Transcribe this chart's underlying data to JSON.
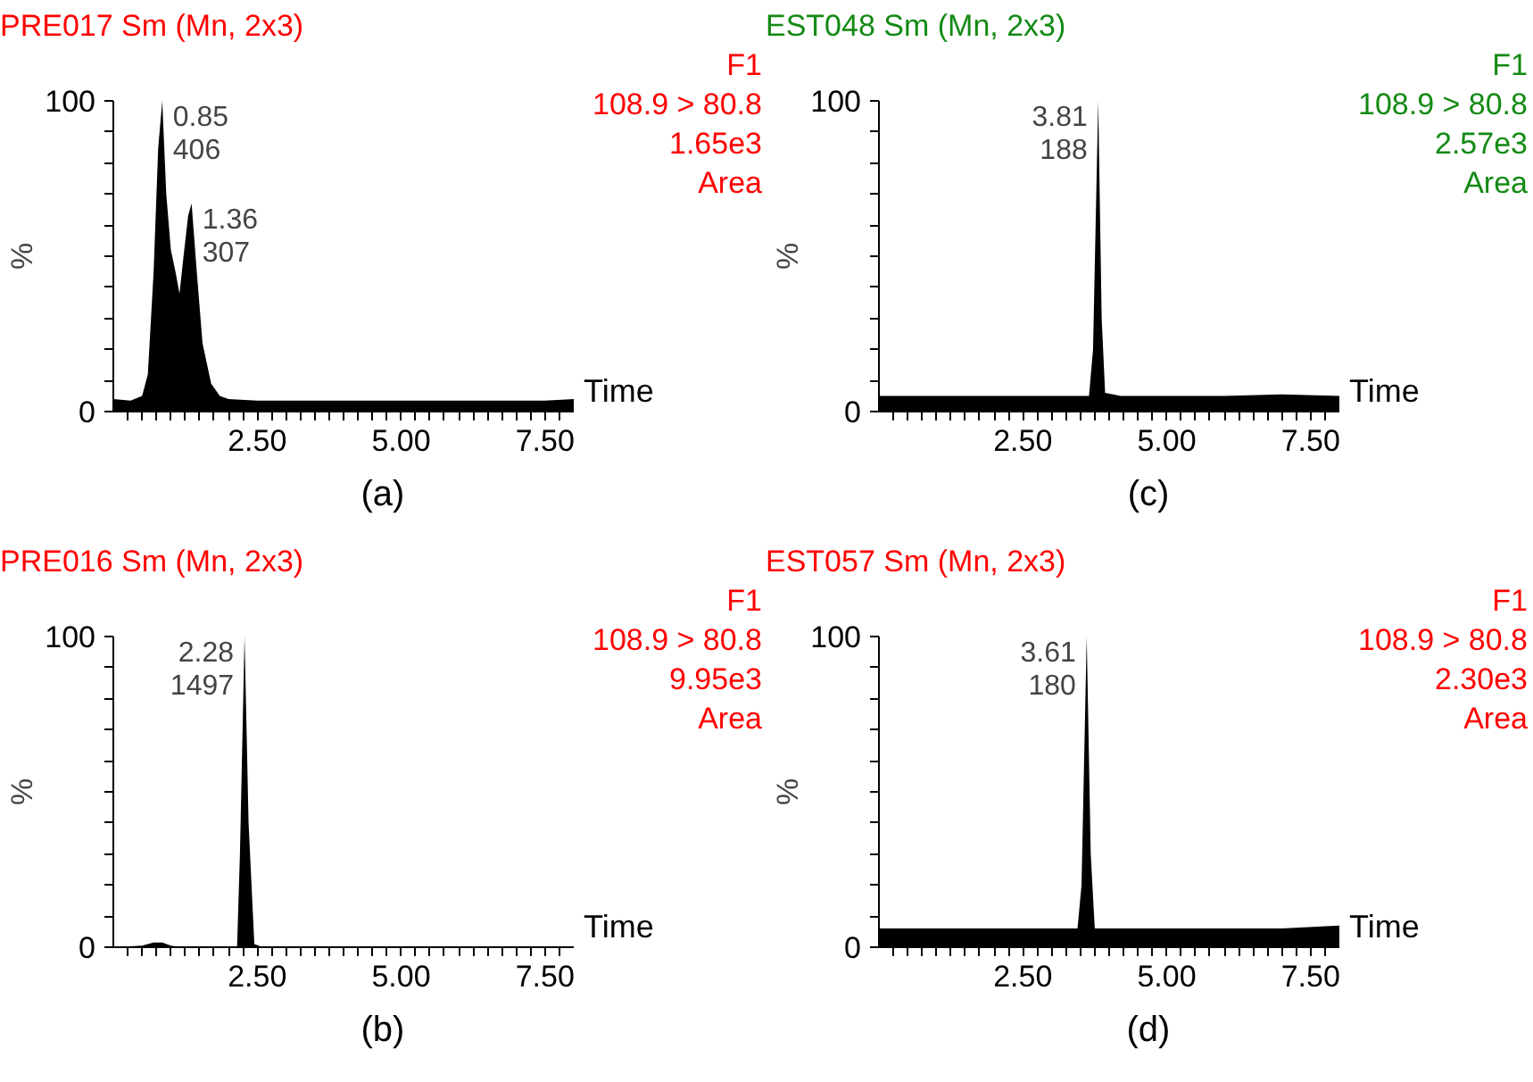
{
  "chart_data": [
    {
      "type": "area",
      "title": "PRE017 Sm (Mn, 2x3)",
      "xlabel": "Time",
      "ylabel": "%",
      "xlim": [
        0,
        8
      ],
      "ylim": [
        0,
        100
      ],
      "xticks": [
        {
          "value": 0.25,
          "label": null
        },
        {
          "value": 0.5,
          "label": null
        },
        {
          "value": 0.75,
          "label": null
        },
        {
          "value": 1,
          "label": null
        },
        {
          "value": 1.25,
          "label": null
        },
        {
          "value": 1.5,
          "label": null
        },
        {
          "value": 1.75,
          "label": null
        },
        {
          "value": 2,
          "label": null
        },
        {
          "value": 2.25,
          "label": null
        },
        {
          "value": 2.5,
          "label": "2.50"
        },
        {
          "value": 2.75,
          "label": null
        },
        {
          "value": 3,
          "label": null
        },
        {
          "value": 3.25,
          "label": null
        },
        {
          "value": 3.5,
          "label": null
        },
        {
          "value": 3.75,
          "label": null
        },
        {
          "value": 4,
          "label": null
        },
        {
          "value": 4.25,
          "label": null
        },
        {
          "value": 4.5,
          "label": null
        },
        {
          "value": 4.75,
          "label": null
        },
        {
          "value": 5,
          "label": "5.00"
        },
        {
          "value": 5.25,
          "label": null
        },
        {
          "value": 5.5,
          "label": null
        },
        {
          "value": 5.75,
          "label": null
        },
        {
          "value": 6,
          "label": null
        },
        {
          "value": 6.25,
          "label": null
        },
        {
          "value": 6.5,
          "label": null
        },
        {
          "value": 6.75,
          "label": null
        },
        {
          "value": 7,
          "label": null
        },
        {
          "value": 7.25,
          "label": null
        },
        {
          "value": 7.5,
          "label": "7.50"
        },
        {
          "value": 7.75,
          "label": null
        }
      ],
      "yticks": [
        0,
        {
          "value": 10,
          "label": null
        },
        {
          "value": 20,
          "label": null
        },
        {
          "value": 30,
          "label": null
        },
        {
          "value": 40,
          "label": null
        },
        {
          "value": 50,
          "label": null
        },
        {
          "value": 60,
          "label": null
        },
        {
          "value": 70,
          "label": null
        },
        {
          "value": 80,
          "label": null
        },
        {
          "value": 90,
          "label": null
        },
        100
      ],
      "x": [
        0,
        0.3,
        0.5,
        0.6,
        0.7,
        0.78,
        0.85,
        0.92,
        1.0,
        1.08,
        1.15,
        1.22,
        1.3,
        1.36,
        1.45,
        1.55,
        1.7,
        1.85,
        2.0,
        2.5,
        3,
        3.5,
        4,
        4.5,
        5,
        5.5,
        6,
        6.5,
        7,
        7.5,
        8
      ],
      "series": [
        {
          "color": "#000000",
          "values": [
            4,
            3.5,
            5,
            12,
            45,
            85,
            100,
            70,
            52,
            45,
            38,
            50,
            63,
            67,
            45,
            22,
            9,
            5,
            4,
            3.5,
            3.5,
            3.5,
            3.5,
            3.5,
            3.5,
            3.5,
            3.5,
            3.5,
            3.5,
            3.5,
            4
          ]
        }
      ],
      "annotations": [
        {
          "text": "0.85\n406",
          "x": 0.85,
          "y": 100
        },
        {
          "text": "1.36\n307",
          "x": 1.36,
          "y": 67
        },
        "F1\n108.9 > 80.8\n1.65e3\nArea",
        "(a)"
      ]
    },
    {
      "type": "area",
      "title": "EST048 Sm (Mn, 2x3)",
      "xlabel": "Time",
      "ylabel": "%",
      "xlim": [
        0,
        8
      ],
      "ylim": [
        0,
        100
      ],
      "xticks": [
        {
          "value": 0.25,
          "label": null
        },
        {
          "value": 0.5,
          "label": null
        },
        {
          "value": 0.75,
          "label": null
        },
        {
          "value": 1,
          "label": null
        },
        {
          "value": 1.25,
          "label": null
        },
        {
          "value": 1.5,
          "label": null
        },
        {
          "value": 1.75,
          "label": null
        },
        {
          "value": 2,
          "label": null
        },
        {
          "value": 2.25,
          "label": null
        },
        {
          "value": 2.5,
          "label": "2.50"
        },
        {
          "value": 2.75,
          "label": null
        },
        {
          "value": 3,
          "label": null
        },
        {
          "value": 3.25,
          "label": null
        },
        {
          "value": 3.5,
          "label": null
        },
        {
          "value": 3.75,
          "label": null
        },
        {
          "value": 4,
          "label": null
        },
        {
          "value": 4.25,
          "label": null
        },
        {
          "value": 4.5,
          "label": null
        },
        {
          "value": 4.75,
          "label": null
        },
        {
          "value": 5,
          "label": "5.00"
        },
        {
          "value": 5.25,
          "label": null
        },
        {
          "value": 5.5,
          "label": null
        },
        {
          "value": 5.75,
          "label": null
        },
        {
          "value": 6,
          "label": null
        },
        {
          "value": 6.25,
          "label": null
        },
        {
          "value": 6.5,
          "label": null
        },
        {
          "value": 6.75,
          "label": null
        },
        {
          "value": 7,
          "label": null
        },
        {
          "value": 7.25,
          "label": null
        },
        {
          "value": 7.5,
          "label": "7.50"
        },
        {
          "value": 7.75,
          "label": null
        }
      ],
      "yticks": [
        0,
        {
          "value": 10,
          "label": null
        },
        {
          "value": 20,
          "label": null
        },
        {
          "value": 30,
          "label": null
        },
        {
          "value": 40,
          "label": null
        },
        {
          "value": 50,
          "label": null
        },
        {
          "value": 60,
          "label": null
        },
        {
          "value": 70,
          "label": null
        },
        {
          "value": 80,
          "label": null
        },
        {
          "value": 90,
          "label": null
        },
        100
      ],
      "x": [
        0,
        1,
        2,
        3,
        3.65,
        3.72,
        3.81,
        3.87,
        3.93,
        4.2,
        5,
        6,
        7,
        8
      ],
      "series": [
        {
          "color": "#000000",
          "values": [
            5,
            5,
            5,
            5,
            5,
            20,
            100,
            30,
            6,
            5,
            5,
            5,
            5.5,
            5
          ]
        }
      ],
      "annotations": [
        {
          "text": "3.81\n188",
          "x": 3.81,
          "y": 100
        },
        "F1\n108.9 > 80.8\n2.57e3\nArea",
        "(c)"
      ]
    },
    {
      "type": "area",
      "title": "PRE016 Sm (Mn, 2x3)",
      "xlabel": "Time",
      "ylabel": "%",
      "xlim": [
        0,
        8
      ],
      "ylim": [
        0,
        100
      ],
      "xticks": [
        {
          "value": 0.25,
          "label": null
        },
        {
          "value": 0.5,
          "label": null
        },
        {
          "value": 0.75,
          "label": null
        },
        {
          "value": 1,
          "label": null
        },
        {
          "value": 1.25,
          "label": null
        },
        {
          "value": 1.5,
          "label": null
        },
        {
          "value": 1.75,
          "label": null
        },
        {
          "value": 2,
          "label": null
        },
        {
          "value": 2.25,
          "label": null
        },
        {
          "value": 2.5,
          "label": "2.50"
        },
        {
          "value": 2.75,
          "label": null
        },
        {
          "value": 3,
          "label": null
        },
        {
          "value": 3.25,
          "label": null
        },
        {
          "value": 3.5,
          "label": null
        },
        {
          "value": 3.75,
          "label": null
        },
        {
          "value": 4,
          "label": null
        },
        {
          "value": 4.25,
          "label": null
        },
        {
          "value": 4.5,
          "label": null
        },
        {
          "value": 4.75,
          "label": null
        },
        {
          "value": 5,
          "label": "5.00"
        },
        {
          "value": 5.25,
          "label": null
        },
        {
          "value": 5.5,
          "label": null
        },
        {
          "value": 5.75,
          "label": null
        },
        {
          "value": 6,
          "label": null
        },
        {
          "value": 6.25,
          "label": null
        },
        {
          "value": 6.5,
          "label": null
        },
        {
          "value": 6.75,
          "label": null
        },
        {
          "value": 7,
          "label": null
        },
        {
          "value": 7.25,
          "label": null
        },
        {
          "value": 7.5,
          "label": "7.50"
        },
        {
          "value": 7.75,
          "label": null
        }
      ],
      "yticks": [
        0,
        {
          "value": 10,
          "label": null
        },
        {
          "value": 20,
          "label": null
        },
        {
          "value": 30,
          "label": null
        },
        {
          "value": 40,
          "label": null
        },
        {
          "value": 50,
          "label": null
        },
        {
          "value": 60,
          "label": null
        },
        {
          "value": 70,
          "label": null
        },
        {
          "value": 80,
          "label": null
        },
        {
          "value": 90,
          "label": null
        },
        100
      ],
      "x": [
        0,
        0.5,
        0.7,
        0.85,
        1.0,
        1.2,
        2.0,
        2.15,
        2.2,
        2.28,
        2.35,
        2.45,
        2.6,
        3,
        4,
        5,
        6,
        7,
        8
      ],
      "series": [
        {
          "color": "#000000",
          "values": [
            0,
            0.5,
            1.5,
            1.5,
            0.5,
            0,
            0,
            0,
            30,
            100,
            40,
            1,
            0,
            0,
            0,
            0,
            0,
            0,
            0
          ]
        }
      ],
      "annotations": [
        {
          "text": "2.28\n1497",
          "x": 2.28,
          "y": 100
        },
        "F1\n108.9 > 80.8\n9.95e3\nArea",
        "(b)"
      ]
    },
    {
      "type": "area",
      "title": "EST057 Sm (Mn, 2x3)",
      "xlabel": "Time",
      "ylabel": "%",
      "xlim": [
        0,
        8
      ],
      "ylim": [
        0,
        100
      ],
      "xticks": [
        {
          "value": 0.25,
          "label": null
        },
        {
          "value": 0.5,
          "label": null
        },
        {
          "value": 0.75,
          "label": null
        },
        {
          "value": 1,
          "label": null
        },
        {
          "value": 1.25,
          "label": null
        },
        {
          "value": 1.5,
          "label": null
        },
        {
          "value": 1.75,
          "label": null
        },
        {
          "value": 2,
          "label": null
        },
        {
          "value": 2.25,
          "label": null
        },
        {
          "value": 2.5,
          "label": "2.50"
        },
        {
          "value": 2.75,
          "label": null
        },
        {
          "value": 3,
          "label": null
        },
        {
          "value": 3.25,
          "label": null
        },
        {
          "value": 3.5,
          "label": null
        },
        {
          "value": 3.75,
          "label": null
        },
        {
          "value": 4,
          "label": null
        },
        {
          "value": 4.25,
          "label": null
        },
        {
          "value": 4.5,
          "label": null
        },
        {
          "value": 4.75,
          "label": null
        },
        {
          "value": 5,
          "label": "5.00"
        },
        {
          "value": 5.25,
          "label": null
        },
        {
          "value": 5.5,
          "label": null
        },
        {
          "value": 5.75,
          "label": null
        },
        {
          "value": 6,
          "label": null
        },
        {
          "value": 6.25,
          "label": null
        },
        {
          "value": 6.5,
          "label": null
        },
        {
          "value": 6.75,
          "label": null
        },
        {
          "value": 7,
          "label": null
        },
        {
          "value": 7.25,
          "label": null
        },
        {
          "value": 7.5,
          "label": "7.50"
        },
        {
          "value": 7.75,
          "label": null
        }
      ],
      "yticks": [
        0,
        {
          "value": 10,
          "label": null
        },
        {
          "value": 20,
          "label": null
        },
        {
          "value": 30,
          "label": null
        },
        {
          "value": 40,
          "label": null
        },
        {
          "value": 50,
          "label": null
        },
        {
          "value": 60,
          "label": null
        },
        {
          "value": 70,
          "label": null
        },
        {
          "value": 80,
          "label": null
        },
        {
          "value": 90,
          "label": null
        },
        100
      ],
      "x": [
        0,
        1,
        2,
        3,
        3.45,
        3.52,
        3.61,
        3.68,
        3.75,
        4,
        5,
        6,
        7,
        8
      ],
      "series": [
        {
          "color": "#000000",
          "values": [
            6,
            6,
            6,
            6,
            6,
            20,
            100,
            30,
            6,
            6,
            6,
            6,
            6,
            7
          ]
        }
      ],
      "annotations": [
        {
          "text": "3.61\n180",
          "x": 3.61,
          "y": 100
        },
        "F1\n108.9 > 80.8\n2.30e3\nArea",
        "(d)"
      ]
    }
  ]
}
